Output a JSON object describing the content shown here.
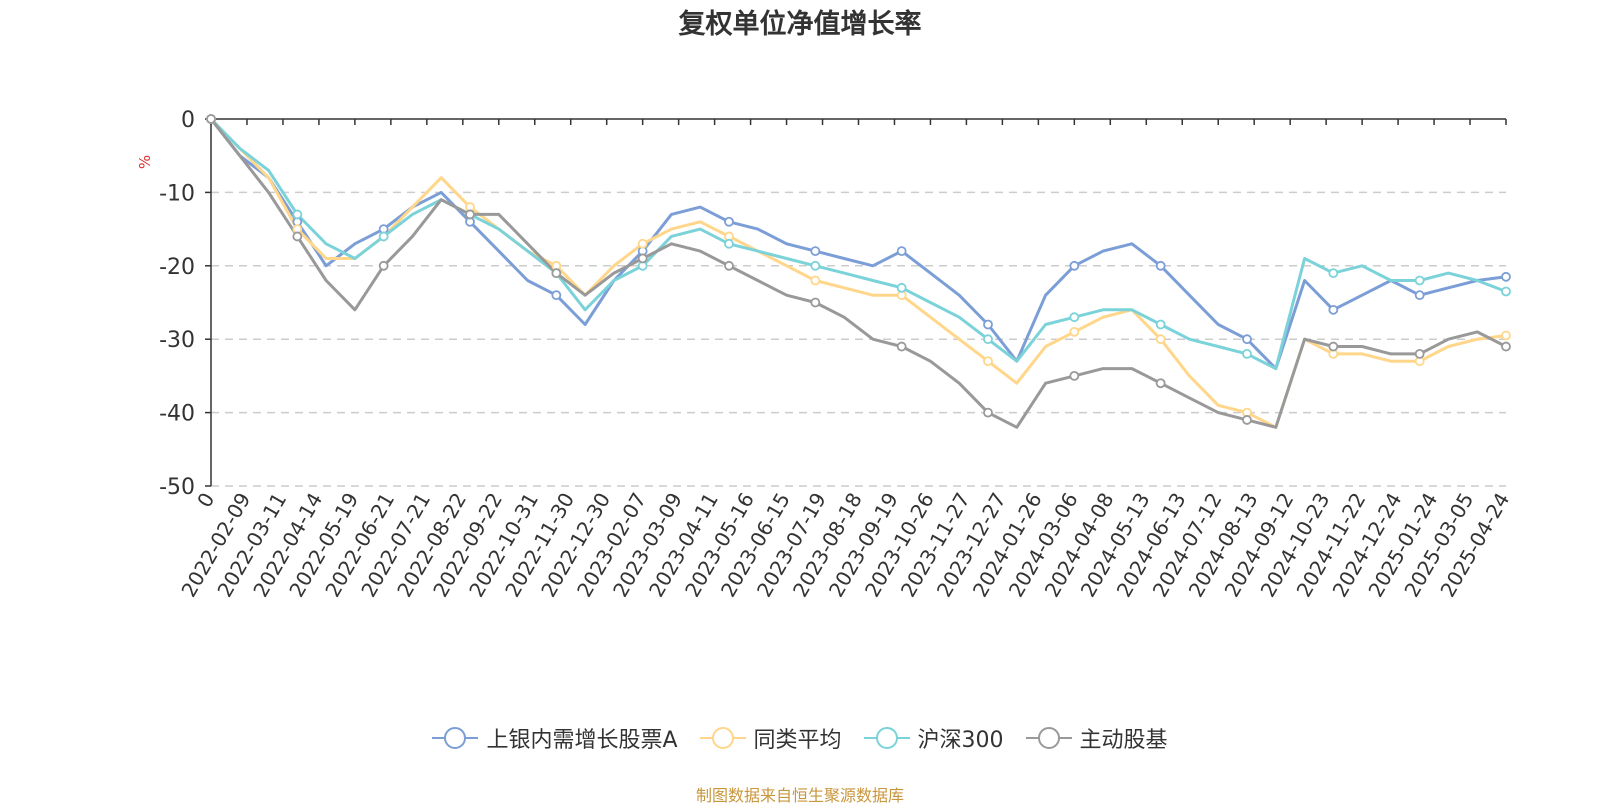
{
  "chart_data": {
    "type": "line",
    "title": "复权单位净值增长率",
    "ylabel": "%",
    "ylim": [
      -50,
      0
    ],
    "yticks": [
      0,
      -10,
      -20,
      -30,
      -40,
      -50
    ],
    "grid": "horizontal dashed",
    "legend_position": "bottom-center",
    "x_ticks": [
      "0",
      "2022-02-09",
      "2022-03-11",
      "2022-04-14",
      "2022-05-19",
      "2022-06-21",
      "2022-07-21",
      "2022-08-22",
      "2022-09-22",
      "2022-10-31",
      "2022-11-30",
      "2022-12-30",
      "2023-02-07",
      "2023-03-09",
      "2023-04-11",
      "2023-05-16",
      "2023-06-15",
      "2023-07-19",
      "2023-08-18",
      "2023-09-19",
      "2023-10-26",
      "2023-11-27",
      "2023-12-27",
      "2024-01-26",
      "2024-03-06",
      "2024-04-08",
      "2024-05-13",
      "2024-06-13",
      "2024-07-12",
      "2024-08-13",
      "2024-09-12",
      "2024-10-23",
      "2024-11-22",
      "2024-12-24",
      "2025-01-24",
      "2025-03-05",
      "2025-04-24"
    ],
    "series": [
      {
        "name": "上银内需增长股票A",
        "color": "#7b9ed6",
        "values": [
          0,
          -5,
          -8,
          -14,
          -20,
          -17,
          -15,
          -12,
          -10,
          -14,
          -18,
          -22,
          -24,
          -28,
          -22,
          -18,
          -13,
          -12,
          -14,
          -15,
          -17,
          -18,
          -19,
          -20,
          -18,
          -21,
          -24,
          -28,
          -33,
          -24,
          -20,
          -18,
          -17,
          -20,
          -24,
          -28,
          -30,
          -34,
          -22,
          -26,
          -24,
          -22,
          -24,
          -23,
          -22,
          -21.5
        ]
      },
      {
        "name": "同类平均",
        "color": "#ffd68a",
        "values": [
          0,
          -4,
          -8,
          -15,
          -19,
          -19,
          -16,
          -12,
          -8,
          -12,
          -15,
          -18,
          -20,
          -24,
          -20,
          -17,
          -15,
          -14,
          -16,
          -18,
          -20,
          -22,
          -23,
          -24,
          -24,
          -27,
          -30,
          -33,
          -36,
          -31,
          -29,
          -27,
          -26,
          -30,
          -35,
          -39,
          -40,
          -42,
          -30,
          -32,
          -32,
          -33,
          -33,
          -31,
          -30,
          -29.5
        ]
      },
      {
        "name": "沪深300",
        "color": "#7bd3d9",
        "values": [
          0,
          -4,
          -7,
          -13,
          -17,
          -19,
          -16,
          -13,
          -11,
          -13,
          -15,
          -18,
          -21,
          -26,
          -22,
          -20,
          -16,
          -15,
          -17,
          -18,
          -19,
          -20,
          -21,
          -22,
          -23,
          -25,
          -27,
          -30,
          -33,
          -28,
          -27,
          -26,
          -26,
          -28,
          -30,
          -31,
          -32,
          -34,
          -19,
          -21,
          -20,
          -22,
          -22,
          -21,
          -22,
          -23.5
        ]
      },
      {
        "name": "主动股基",
        "color": "#999999",
        "values": [
          0,
          -5,
          -10,
          -16,
          -22,
          -26,
          -20,
          -16,
          -11,
          -13,
          -13,
          -17,
          -21,
          -24,
          -21,
          -19,
          -17,
          -18,
          -20,
          -22,
          -24,
          -25,
          -27,
          -30,
          -31,
          -33,
          -36,
          -40,
          -42,
          -36,
          -35,
          -34,
          -34,
          -36,
          -38,
          -40,
          -41,
          -42,
          -30,
          -31,
          -31,
          -32,
          -32,
          -30,
          -29,
          -31
        ]
      }
    ],
    "source": "制图数据来自恒生聚源数据库"
  }
}
